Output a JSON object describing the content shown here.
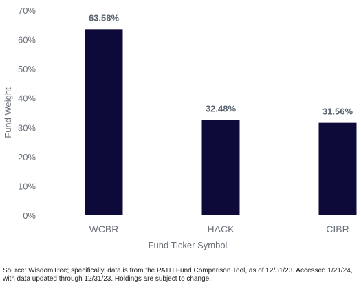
{
  "chart_data": {
    "type": "bar",
    "categories": [
      "WCBR",
      "HACK",
      "CIBR"
    ],
    "values": [
      63.58,
      32.48,
      31.56
    ],
    "data_labels": [
      "63.58%",
      "32.48%",
      "31.56%"
    ],
    "y_ticks": [
      "0%",
      "10%",
      "20%",
      "30%",
      "40%",
      "50%",
      "60%",
      "70%"
    ],
    "title": "",
    "xlabel": "Fund Ticker Symbol",
    "ylabel": "Fund Weight",
    "ylim": [
      0,
      70
    ],
    "grid": false,
    "bar_color": "#0d0a3a"
  },
  "source_note": "Source: WisdomTree; specifically, data is from the PATH Fund Comparison Tool, as of 12/31/23. Accessed 1/21/24, with data updated through 12/31/23. Holdings are subject to change."
}
